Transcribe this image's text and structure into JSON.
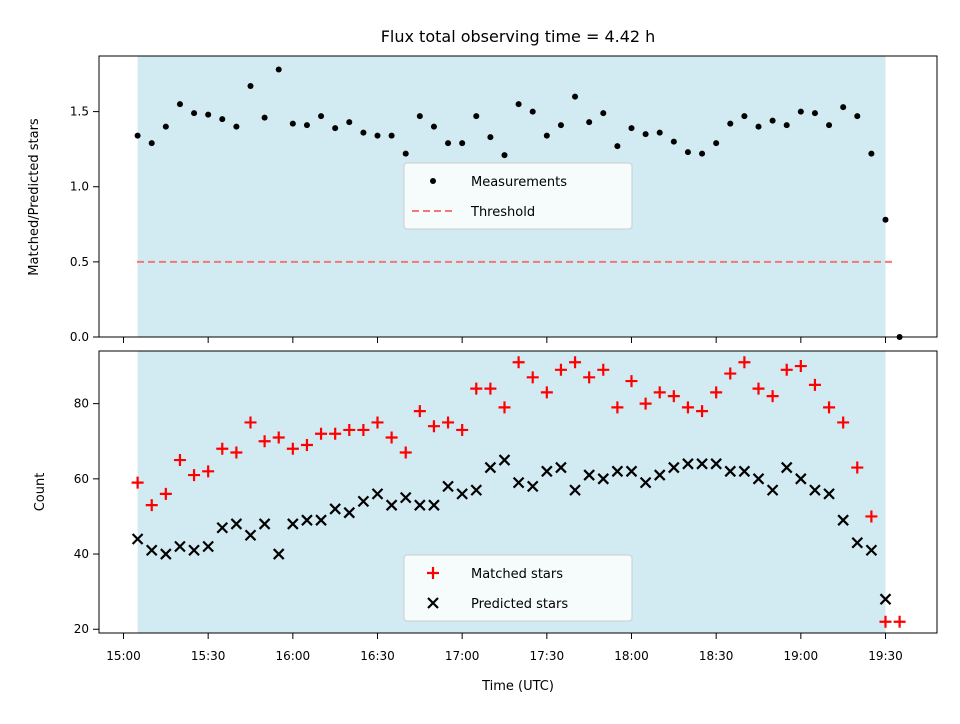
{
  "chart_data": [
    {
      "type": "scatter",
      "title": "Flux total observing time = 4.42 h",
      "xlabel": "",
      "ylabel": "Matched/Predicted stars",
      "ylim": [
        0,
        1.87
      ],
      "yticks": [
        "0.0",
        "0.5",
        "1.0",
        "1.5"
      ],
      "shaded_interval": [
        "15:05",
        "19:30"
      ],
      "threshold": 0.5,
      "legend": {
        "placement": "center",
        "entries": [
          "Measurements",
          "Threshold"
        ]
      },
      "colors": {
        "measurements": "#000000",
        "threshold": "#f07878",
        "shade": "#add8e6"
      },
      "series": [
        {
          "name": "Measurements",
          "x": [
            "15:05",
            "15:10",
            "15:15",
            "15:20",
            "15:25",
            "15:30",
            "15:35",
            "15:40",
            "15:45",
            "15:50",
            "15:55",
            "16:00",
            "16:05",
            "16:10",
            "16:15",
            "16:20",
            "16:25",
            "16:30",
            "16:35",
            "16:40",
            "16:45",
            "16:50",
            "16:55",
            "17:00",
            "17:05",
            "17:10",
            "17:15",
            "17:20",
            "17:25",
            "17:30",
            "17:35",
            "17:40",
            "17:45",
            "17:50",
            "17:55",
            "18:00",
            "18:05",
            "18:10",
            "18:15",
            "18:20",
            "18:25",
            "18:30",
            "18:35",
            "18:40",
            "18:45",
            "18:50",
            "18:55",
            "19:00",
            "19:05",
            "19:10",
            "19:15",
            "19:20",
            "19:25",
            "19:30",
            "19:35"
          ],
          "values": [
            1.34,
            1.29,
            1.4,
            1.55,
            1.49,
            1.48,
            1.45,
            1.4,
            1.67,
            1.46,
            1.78,
            1.42,
            1.41,
            1.47,
            1.39,
            1.43,
            1.36,
            1.34,
            1.34,
            1.22,
            1.47,
            1.4,
            1.29,
            1.29,
            1.47,
            1.33,
            1.21,
            1.55,
            1.5,
            1.34,
            1.41,
            1.6,
            1.43,
            1.49,
            1.27,
            1.39,
            1.35,
            1.36,
            1.3,
            1.23,
            1.22,
            1.29,
            1.42,
            1.47,
            1.4,
            1.44,
            1.41,
            1.5,
            1.49,
            1.41,
            1.53,
            1.47,
            1.22,
            0.78,
            0.0
          ]
        }
      ]
    },
    {
      "type": "scatter",
      "title": "",
      "xlabel": "Time (UTC)",
      "ylabel": "Count",
      "ylim": [
        19,
        94
      ],
      "yticks": [
        "20",
        "40",
        "60",
        "80"
      ],
      "xticks": [
        "15:00",
        "15:30",
        "16:00",
        "16:30",
        "17:00",
        "17:30",
        "18:00",
        "18:30",
        "19:00",
        "19:30"
      ],
      "shaded_interval": [
        "15:05",
        "19:30"
      ],
      "legend": {
        "placement": "lower center",
        "entries": [
          "Matched stars",
          "Predicted stars"
        ]
      },
      "colors": {
        "matched": "#ff0000",
        "predicted": "#000000",
        "shade": "#add8e6"
      },
      "series": [
        {
          "name": "Matched stars",
          "x": [
            "15:05",
            "15:10",
            "15:15",
            "15:20",
            "15:25",
            "15:30",
            "15:35",
            "15:40",
            "15:45",
            "15:50",
            "15:55",
            "16:00",
            "16:05",
            "16:10",
            "16:15",
            "16:20",
            "16:25",
            "16:30",
            "16:35",
            "16:40",
            "16:45",
            "16:50",
            "16:55",
            "17:00",
            "17:05",
            "17:10",
            "17:15",
            "17:20",
            "17:25",
            "17:30",
            "17:35",
            "17:40",
            "17:45",
            "17:50",
            "17:55",
            "18:00",
            "18:05",
            "18:10",
            "18:15",
            "18:20",
            "18:25",
            "18:30",
            "18:35",
            "18:40",
            "18:45",
            "18:50",
            "18:55",
            "19:00",
            "19:05",
            "19:10",
            "19:15",
            "19:20",
            "19:25",
            "19:30",
            "19:35"
          ],
          "values": [
            59,
            53,
            56,
            65,
            61,
            62,
            68,
            67,
            75,
            70,
            71,
            68,
            69,
            72,
            72,
            73,
            73,
            75,
            71,
            67,
            78,
            74,
            75,
            73,
            84,
            84,
            79,
            91,
            87,
            83,
            89,
            91,
            87,
            89,
            79,
            86,
            80,
            83,
            82,
            79,
            78,
            83,
            88,
            91,
            84,
            82,
            89,
            90,
            85,
            79,
            75,
            63,
            50,
            22,
            22
          ]
        },
        {
          "name": "Predicted stars",
          "x": [
            "15:05",
            "15:10",
            "15:15",
            "15:20",
            "15:25",
            "15:30",
            "15:35",
            "15:40",
            "15:45",
            "15:50",
            "15:55",
            "16:00",
            "16:05",
            "16:10",
            "16:15",
            "16:20",
            "16:25",
            "16:30",
            "16:35",
            "16:40",
            "16:45",
            "16:50",
            "16:55",
            "17:00",
            "17:05",
            "17:10",
            "17:15",
            "17:20",
            "17:25",
            "17:30",
            "17:35",
            "17:40",
            "17:45",
            "17:50",
            "17:55",
            "18:00",
            "18:05",
            "18:10",
            "18:15",
            "18:20",
            "18:25",
            "18:30",
            "18:35",
            "18:40",
            "18:45",
            "18:50",
            "18:55",
            "19:00",
            "19:05",
            "19:10",
            "19:15",
            "19:20",
            "19:25",
            "19:30"
          ],
          "values": [
            44,
            41,
            40,
            42,
            41,
            42,
            47,
            48,
            45,
            48,
            40,
            48,
            49,
            49,
            52,
            51,
            54,
            56,
            53,
            55,
            53,
            53,
            58,
            56,
            57,
            63,
            65,
            59,
            58,
            62,
            63,
            57,
            61,
            60,
            62,
            62,
            59,
            61,
            63,
            64,
            64,
            64,
            62,
            62,
            60,
            57,
            63,
            60,
            57,
            56,
            49,
            43,
            41,
            28
          ]
        }
      ]
    }
  ]
}
